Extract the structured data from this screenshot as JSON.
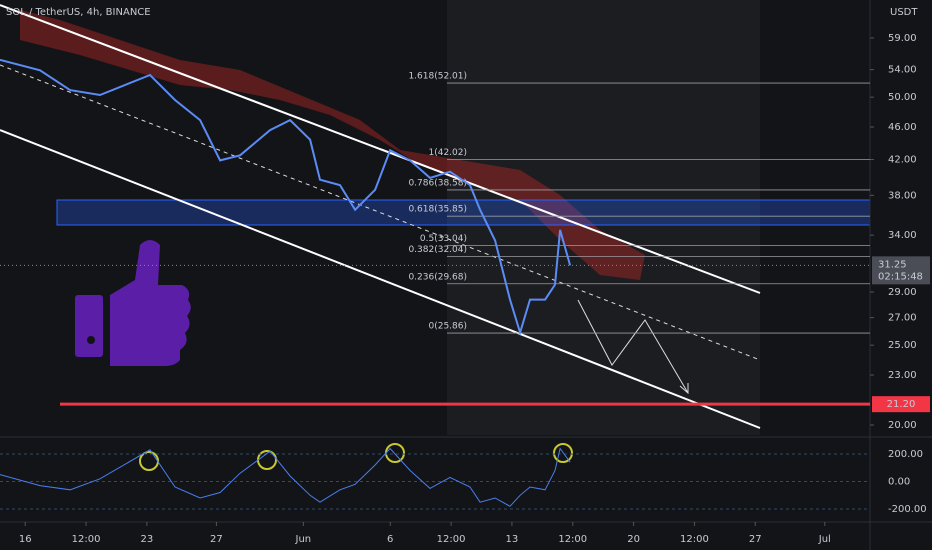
{
  "chart_data": [
    {
      "type": "line",
      "title": "SOL / TetherUS, 4h, BINANCE",
      "y_axis_label": "USDT",
      "log_scale": true,
      "color": "#5b8cf5",
      "x": [
        14.55,
        16.85,
        18.58,
        20.3,
        23.18,
        24.62,
        26.06,
        27.21,
        28.36,
        30.09,
        31.24,
        32.39,
        32.96,
        34.11,
        34.98,
        36.13,
        36.99,
        38.14,
        39.29,
        40.44,
        41.59,
        42.17,
        43.03,
        43.89,
        44.47,
        45.04,
        45.91,
        46.48,
        46.77,
        47.35
      ],
      "values": [
        55.5,
        53.9,
        51.0,
        50.3,
        53.2,
        49.6,
        46.9,
        41.9,
        42.5,
        45.6,
        46.9,
        44.4,
        39.7,
        39.1,
        36.5,
        38.6,
        43.1,
        41.9,
        39.9,
        40.6,
        39.1,
        36.5,
        33.5,
        28.4,
        25.9,
        28.4,
        28.4,
        29.6,
        34.5,
        31.25
      ],
      "xlim": [
        14.55,
        64.6
      ],
      "xticks": [
        16,
        {
          "value": 19.5,
          "label": "12:00"
        },
        23,
        27,
        {
          "value": 32,
          "label": "Jun"
        },
        {
          "value": 37,
          "label": "6"
        },
        {
          "value": 40.5,
          "label": "12:00"
        },
        {
          "value": 44,
          "label": "13"
        },
        {
          "value": 47.5,
          "label": "12:00"
        },
        {
          "value": 51,
          "label": "20"
        },
        {
          "value": 54.5,
          "label": "12:00"
        },
        {
          "value": 58,
          "label": "27"
        },
        {
          "value": 62,
          "label": "Jul"
        }
      ],
      "ylim": [
        19.45,
        65.6
      ],
      "yticks": [
        {
          "value": 59,
          "label": "59.00"
        },
        {
          "value": 54,
          "label": "54.00"
        },
        {
          "value": 50,
          "label": "50.00"
        },
        {
          "value": 46,
          "label": "46.00"
        },
        {
          "value": 42,
          "label": "42.00"
        },
        {
          "value": 38,
          "label": "38.00"
        },
        {
          "value": 34,
          "label": "34.00"
        },
        {
          "value": 29,
          "label": "29.00"
        },
        {
          "value": 27,
          "label": "27.00"
        },
        {
          "value": 25,
          "label": "25.00"
        },
        {
          "value": 23,
          "label": "23.00"
        },
        {
          "value": 20,
          "label": "20.00"
        }
      ],
      "fib_levels": [
        {
          "value": 52.01,
          "label": "1.618(52.01)"
        },
        {
          "value": 42.02,
          "label": "1(42.02)"
        },
        {
          "value": 38.58,
          "label": "0.786(38.58)"
        },
        {
          "value": 35.85,
          "label": "0.618(35.85)"
        },
        {
          "value": 33.04,
          "label": "0.5(33.04)"
        },
        {
          "value": 32.04,
          "label": "0.382(32.04)"
        },
        {
          "value": 29.68,
          "label": "0.236(29.68)"
        },
        {
          "value": 25.86,
          "label": "0(25.86)"
        }
      ],
      "last_price": 31.25,
      "countdown": "02:15:48",
      "support_level": {
        "value": 21.2,
        "label": "21.20"
      }
    },
    {
      "type": "line",
      "color": "#4a7ff0",
      "x": [
        14.55,
        16.85,
        18.58,
        20.3,
        23.18,
        24.62,
        26.06,
        27.21,
        28.36,
        30.09,
        31.24,
        32.39,
        32.96,
        34.11,
        34.98,
        36.13,
        36.99,
        38.14,
        39.29,
        40.44,
        41.59,
        42.17,
        43.03,
        43.89,
        44.47,
        45.04,
        45.91,
        46.48,
        46.77,
        47.35
      ],
      "values": [
        50,
        -30,
        -60,
        20,
        230,
        -40,
        -120,
        -80,
        60,
        220,
        40,
        -100,
        -150,
        -60,
        -20,
        120,
        240,
        80,
        -50,
        30,
        -40,
        -150,
        -120,
        -180,
        -100,
        -40,
        -60,
        80,
        240,
        140
      ],
      "ylim": [
        -265,
        316
      ],
      "yticks": [
        {
          "value": 200,
          "label": "200.00"
        },
        {
          "value": 0,
          "label": "0.00"
        },
        {
          "value": -200,
          "label": "-200.00"
        }
      ]
    }
  ]
}
